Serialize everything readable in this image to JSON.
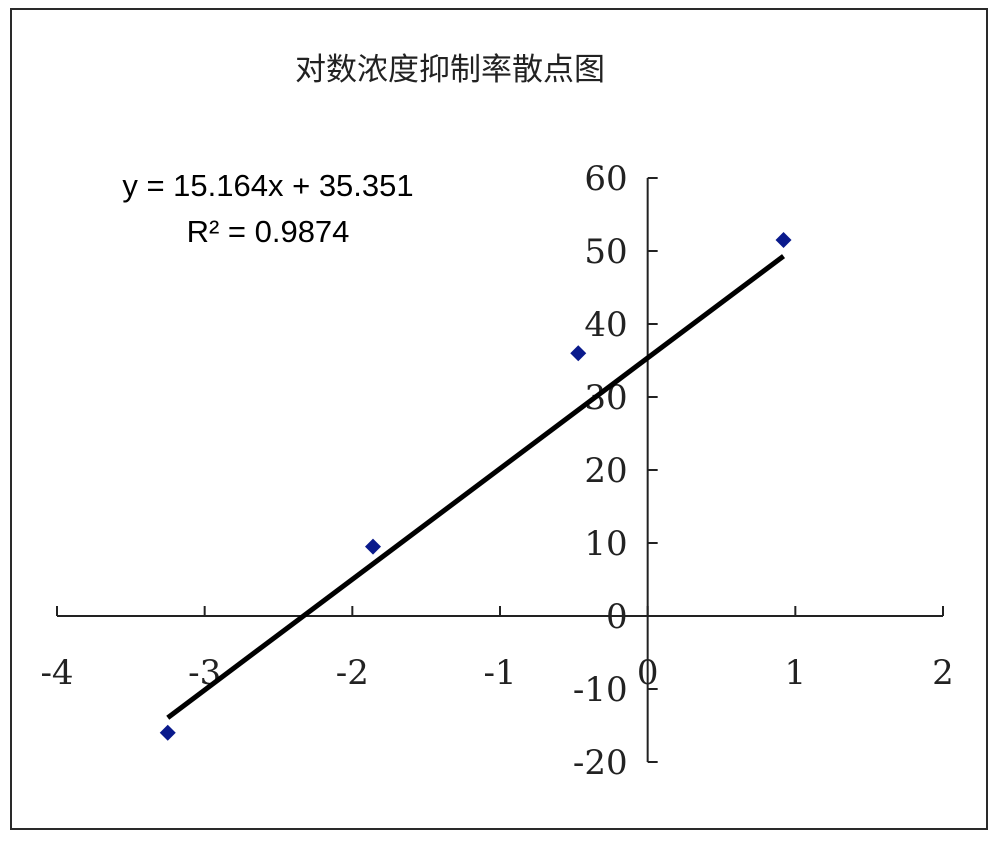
{
  "chart_data": {
    "type": "scatter",
    "title": "对数浓度抑制率散点图",
    "xlabel": "",
    "ylabel": "",
    "xlim": [
      -4,
      2
    ],
    "ylim": [
      -20,
      60
    ],
    "x_ticks": [
      -4,
      -3,
      -2,
      -1,
      0,
      1,
      2
    ],
    "y_ticks": [
      -20,
      -10,
      0,
      10,
      20,
      30,
      40,
      50,
      60
    ],
    "x_tick_labels": [
      "-4",
      "-3",
      "-2",
      "-1",
      "0",
      "1",
      "2"
    ],
    "y_tick_labels": [
      "-20",
      "-10",
      "0",
      "10",
      "20",
      "30",
      "40",
      "50",
      "60"
    ],
    "series": [
      {
        "points": [
          {
            "x": -3.25,
            "y": -16.0
          },
          {
            "x": -1.86,
            "y": 9.5
          },
          {
            "x": -0.47,
            "y": 36.0
          },
          {
            "x": 0.92,
            "y": 51.5
          }
        ],
        "marker": "diamond",
        "color": "#0a1a8c"
      }
    ],
    "trendline": {
      "type": "linear",
      "slope": 15.164,
      "intercept": 35.351,
      "x_range": [
        -3.25,
        0.92
      ],
      "color": "#000000",
      "equation_label": "y = 15.164x + 35.351",
      "r2_label": "R² = 0.9874"
    },
    "grid": false,
    "legend": "none"
  }
}
